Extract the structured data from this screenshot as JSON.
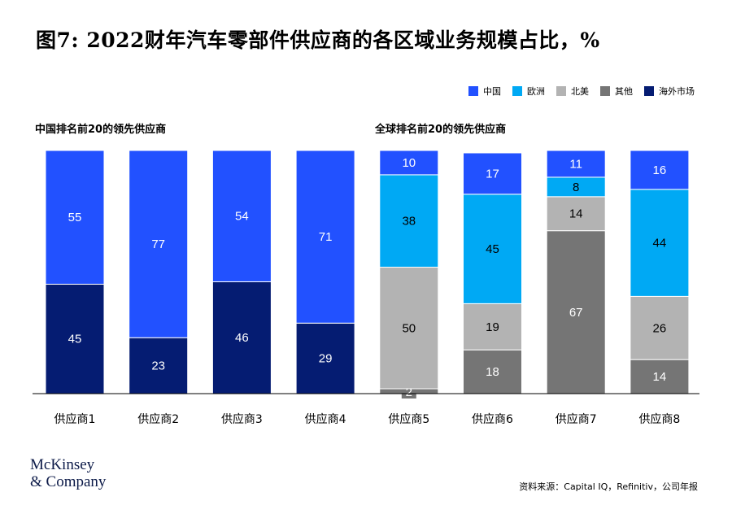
{
  "title": "图7: 2022财年汽车零部件供应商的各区域业务规模占比，%",
  "colors": {
    "china": "#2251ff",
    "europe": "#00a9f4",
    "north_america": "#b3b3b3",
    "other": "#757575",
    "overseas": "#051c72"
  },
  "legend": [
    {
      "label": "中国",
      "color": "#2251ff"
    },
    {
      "label": "欧洲",
      "color": "#00a9f4"
    },
    {
      "label": "北美",
      "color": "#b3b3b3"
    },
    {
      "label": "其他",
      "color": "#757575"
    },
    {
      "label": "海外市场",
      "color": "#051c72"
    }
  ],
  "chart_data": [
    {
      "type": "bar",
      "stacked": true,
      "title": "中国排名前20的领先供应商",
      "categories": [
        "供应商1",
        "供应商2",
        "供应商3",
        "供应商4"
      ],
      "series": [
        {
          "name": "海外市场",
          "values": [
            45,
            23,
            46,
            29
          ],
          "color": "#051c72",
          "label_color": "#ffffff"
        },
        {
          "name": "中国",
          "values": [
            55,
            77,
            54,
            71
          ],
          "color": "#2251ff",
          "label_color": "#ffffff"
        }
      ],
      "ylim": [
        0,
        100
      ]
    },
    {
      "type": "bar",
      "stacked": true,
      "title": "全球排名前20的领先供应商",
      "categories": [
        "供应商5",
        "供应商6",
        "供应商7",
        "供应商8"
      ],
      "series": [
        {
          "name": "其他",
          "values": [
            2,
            18,
            67,
            14
          ],
          "color": "#757575",
          "label_color": "#ffffff"
        },
        {
          "name": "北美",
          "values": [
            50,
            19,
            14,
            26
          ],
          "color": "#b3b3b3",
          "label_color": "#000000"
        },
        {
          "name": "欧洲",
          "values": [
            38,
            45,
            8,
            44
          ],
          "color": "#00a9f4",
          "label_color": "#000000"
        },
        {
          "name": "中国",
          "values": [
            10,
            17,
            11,
            16
          ],
          "color": "#2251ff",
          "label_color": "#ffffff"
        }
      ],
      "ylim": [
        0,
        100
      ]
    }
  ],
  "footer": {
    "logo_line1": "McKinsey",
    "logo_line2": "& Company",
    "source": "资料来源：Capital IQ，Refinitiv，公司年报"
  }
}
